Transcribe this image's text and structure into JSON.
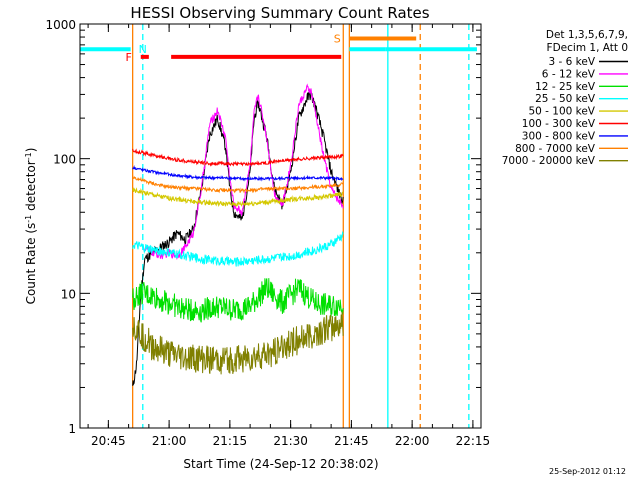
{
  "chart_data": {
    "type": "line",
    "title": "HESSI Observing Summary Count Rates",
    "xlabel": "Start Time (24-Sep-12 20:38:02)",
    "ylabel_main": "Count Rate (s",
    "ylabel_sup1": "-1",
    "ylabel_mid": " detector",
    "ylabel_sup2": "-1",
    "ylabel_end": ")",
    "y_scale": "log",
    "ylim": [
      1,
      1000
    ],
    "xlim_minutes": [
      0,
      99
    ],
    "x_ticks": [
      {
        "label": "20:45",
        "minute": 7
      },
      {
        "label": "21:00",
        "minute": 22
      },
      {
        "label": "21:15",
        "minute": 37
      },
      {
        "label": "21:30",
        "minute": 52
      },
      {
        "label": "21:45",
        "minute": 67
      },
      {
        "label": "22:00",
        "minute": 82
      },
      {
        "label": "22:15",
        "minute": 97
      }
    ],
    "y_ticks": [
      {
        "label": "1",
        "value": 1
      },
      {
        "label": "10",
        "value": 10
      },
      {
        "label": "100",
        "value": 100
      },
      {
        "label": "1000",
        "value": 1000
      }
    ],
    "legend_header": [
      "Det 1,3,5,6,7,9,",
      "FDecim 1, Att 0"
    ],
    "legend_position": "right-outside",
    "timestamp": "25-Sep-2012 01:12",
    "data_interval_minutes": [
      13,
      65
    ],
    "series": [
      {
        "name": "3 - 6 keV",
        "color": "#000000",
        "x": [
          13,
          14,
          15,
          16,
          18,
          20,
          22,
          24,
          26,
          28,
          30,
          32,
          34,
          36,
          37,
          38,
          40,
          42,
          43,
          44,
          46,
          48,
          50,
          52,
          54,
          56,
          57,
          58,
          60,
          62,
          64,
          65
        ],
        "y": [
          2,
          3,
          10,
          18,
          20,
          22,
          24,
          28,
          25,
          30,
          60,
          150,
          200,
          120,
          60,
          40,
          35,
          80,
          200,
          260,
          150,
          60,
          45,
          80,
          200,
          280,
          300,
          250,
          150,
          80,
          55,
          50
        ]
      },
      {
        "name": "6 - 12 keV",
        "color": "#ff00ff",
        "x": [
          16,
          18,
          20,
          22,
          24,
          26,
          28,
          30,
          32,
          34,
          36,
          37,
          38,
          40,
          42,
          43,
          44,
          46,
          48,
          50,
          52,
          54,
          56,
          57,
          58,
          60,
          62,
          64,
          65
        ],
        "y": [
          22,
          20,
          19,
          20,
          19,
          22,
          28,
          60,
          180,
          230,
          140,
          70,
          45,
          40,
          90,
          220,
          300,
          150,
          55,
          45,
          90,
          250,
          330,
          320,
          230,
          110,
          60,
          48,
          45
        ]
      },
      {
        "name": "12 - 25 keV",
        "color": "#00e000",
        "x": [
          13,
          15,
          18,
          22,
          26,
          30,
          34,
          38,
          42,
          46,
          50,
          54,
          58,
          62,
          65
        ],
        "y": [
          9,
          10,
          9.5,
          8.5,
          7.5,
          7.5,
          8,
          7.5,
          8,
          11,
          8.5,
          11,
          8.5,
          8,
          8.5
        ]
      },
      {
        "name": "25 - 50 keV",
        "color": "#00ffff",
        "x": [
          13,
          15,
          18,
          22,
          26,
          30,
          34,
          38,
          42,
          46,
          50,
          54,
          58,
          62,
          65
        ],
        "y": [
          23,
          22,
          21,
          20,
          19,
          18,
          17.5,
          17,
          17.5,
          18,
          18.5,
          19.5,
          21,
          23,
          27
        ]
      },
      {
        "name": "50 - 100 keV",
        "color": "#d4c800",
        "x": [
          13,
          16,
          20,
          24,
          28,
          32,
          36,
          40,
          44,
          48,
          52,
          56,
          60,
          64,
          65
        ],
        "y": [
          58,
          56,
          52,
          50,
          48,
          47,
          46,
          46,
          47,
          48,
          50,
          51,
          52,
          54,
          55
        ]
      },
      {
        "name": "100 - 300 keV",
        "color": "#ff0000",
        "x": [
          13,
          16,
          20,
          24,
          28,
          32,
          36,
          40,
          44,
          48,
          52,
          56,
          60,
          64,
          65
        ],
        "y": [
          115,
          110,
          103,
          98,
          95,
          92,
          92,
          91,
          92,
          95,
          98,
          100,
          102,
          104,
          106
        ]
      },
      {
        "name": "300 - 800 keV",
        "color": "#0000ff",
        "x": [
          13,
          16,
          20,
          24,
          28,
          32,
          36,
          40,
          44,
          48,
          52,
          56,
          60,
          64,
          65
        ],
        "y": [
          86,
          82,
          78,
          75,
          73,
          72,
          72,
          71,
          71,
          71,
          72,
          72,
          72,
          71,
          70
        ]
      },
      {
        "name": "800 - 7000 keV",
        "color": "#ff8000",
        "x": [
          13,
          16,
          20,
          24,
          28,
          32,
          36,
          40,
          44,
          48,
          52,
          56,
          60,
          64,
          65
        ],
        "y": [
          73,
          68,
          63,
          61,
          60,
          59,
          58,
          58,
          59,
          60,
          60,
          61,
          62,
          64,
          65
        ]
      },
      {
        "name": "7000 - 20000 keV",
        "color": "#808000",
        "x": [
          13,
          15,
          18,
          22,
          26,
          30,
          34,
          38,
          42,
          46,
          50,
          54,
          58,
          62,
          65
        ],
        "y": [
          6,
          5,
          4,
          3.5,
          3.3,
          3.2,
          3.2,
          3.2,
          3.3,
          3.5,
          4,
          4.5,
          5,
          5.5,
          6
        ]
      }
    ],
    "flag_bars": [
      {
        "label": "N",
        "color": "#00ffff",
        "y": 650,
        "segments": [
          [
            0,
            12.5
          ],
          [
            66.5,
            75.5
          ],
          [
            75.5,
            98
          ]
        ],
        "label_minute": 15.5
      },
      {
        "label": "F",
        "color": "#ff0000",
        "y": 570,
        "segments": [
          [
            15,
            17
          ],
          [
            22.5,
            64.5
          ]
        ],
        "label_minute": 12
      },
      {
        "label": "S",
        "color": "#ff8000",
        "y": 780,
        "segments": [
          [
            66.5,
            83
          ]
        ],
        "label_minute": 63.5
      }
    ],
    "vertical_lines": [
      {
        "minute": 13,
        "color": "#ff8000",
        "style": "solid"
      },
      {
        "minute": 15.5,
        "color": "#00ffff",
        "style": "dashed"
      },
      {
        "minute": 65,
        "color": "#ff8000",
        "style": "solid"
      },
      {
        "minute": 66.5,
        "color": "#ff8000",
        "style": "solid"
      },
      {
        "minute": 76,
        "color": "#00ffff",
        "style": "solid"
      },
      {
        "minute": 84,
        "color": "#ff8000",
        "style": "dashed"
      },
      {
        "minute": 96,
        "color": "#00ffff",
        "style": "dashed"
      }
    ]
  }
}
